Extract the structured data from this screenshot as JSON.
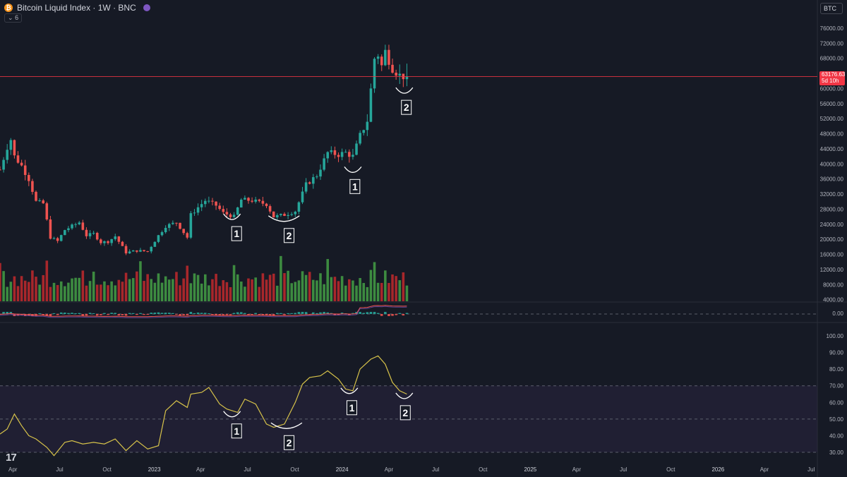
{
  "header": {
    "title": "Bitcoin Liquid Index · 1W · BNC",
    "btc_logo_text": "₿",
    "collapse_label": "6",
    "symbol": "BTC"
  },
  "price_badge": {
    "price": "63176.63",
    "countdown": "5d 10h"
  },
  "colors": {
    "background": "#161a25",
    "up": "#26a69a",
    "down": "#ef5350",
    "volume_up": "#3d8b40",
    "volume_down": "#a8272b",
    "rsi_line": "#d6c24a",
    "rsi_band": "#2a2540",
    "annotation": "#ffffff",
    "price_line": "#f23645"
  },
  "icons": {
    "btc": "bitcoin-logo-icon",
    "indicator": "purple-dot-icon",
    "collapse": "chevron-down-icon",
    "brand": "tradingview-logo-icon"
  },
  "brand_logo_text": "17",
  "chart_data": [
    {
      "type": "candlestick",
      "title": "Bitcoin Liquid Index · 1W · BNC",
      "ylim": [
        0,
        78000
      ],
      "y_ticks": [
        4000,
        8000,
        12000,
        16000,
        20000,
        24000,
        28000,
        32000,
        36000,
        40000,
        44000,
        48000,
        52000,
        56000,
        60000,
        64000,
        68000,
        72000,
        76000
      ],
      "y_tick_labels": [
        "4000.00",
        "8000.00",
        "12000.00",
        "16000.00",
        "20000.00",
        "24000.00",
        "28000.00",
        "32000.00",
        "36000.00",
        "40000.00",
        "44000.00",
        "48000.00",
        "52000.00",
        "56000.00",
        "60000.00",
        "64000.00",
        "68000.00",
        "72000.00",
        "76000.00"
      ],
      "x_labels": [
        "Apr",
        "Jul",
        "Oct",
        "2023",
        "Apr",
        "Jul",
        "Oct",
        "2024",
        "Apr",
        "Jul",
        "Oct",
        "2025",
        "Apr",
        "Jul",
        "Oct",
        "2026",
        "Apr",
        "Jul"
      ],
      "x_start": "2022-03-07",
      "x_end": "2026-07-13",
      "last_price": 63176.63,
      "close_path": [
        [
          "2022-03-07",
          38500
        ],
        [
          "2022-03-21",
          44500
        ],
        [
          "2022-03-28",
          46500
        ],
        [
          "2022-04-04",
          42000
        ],
        [
          "2022-04-18",
          39500
        ],
        [
          "2022-05-02",
          36000
        ],
        [
          "2022-05-16",
          30000
        ],
        [
          "2022-05-30",
          29500
        ],
        [
          "2022-06-13",
          20500
        ],
        [
          "2022-06-27",
          19500
        ],
        [
          "2022-07-11",
          22500
        ],
        [
          "2022-07-25",
          23500
        ],
        [
          "2022-08-08",
          24500
        ],
        [
          "2022-08-22",
          21000
        ],
        [
          "2022-09-05",
          21500
        ],
        [
          "2022-09-19",
          19200
        ],
        [
          "2022-10-03",
          19400
        ],
        [
          "2022-10-17",
          20800
        ],
        [
          "2022-11-07",
          16500
        ],
        [
          "2022-11-28",
          17000
        ],
        [
          "2022-12-19",
          16800
        ],
        [
          "2023-01-09",
          21000
        ],
        [
          "2023-01-23",
          23500
        ],
        [
          "2023-02-13",
          24500
        ],
        [
          "2023-03-06",
          20500
        ],
        [
          "2023-03-13",
          26500
        ],
        [
          "2023-03-27",
          28500
        ],
        [
          "2023-04-10",
          30300
        ],
        [
          "2023-05-01",
          29000
        ],
        [
          "2023-05-15",
          27000
        ],
        [
          "2023-06-05",
          26000
        ],
        [
          "2023-06-19",
          30500
        ],
        [
          "2023-07-10",
          30300
        ],
        [
          "2023-08-07",
          29300
        ],
        [
          "2023-08-21",
          26000
        ],
        [
          "2023-09-11",
          26500
        ],
        [
          "2023-10-02",
          27500
        ],
        [
          "2023-10-23",
          34500
        ],
        [
          "2023-11-13",
          37000
        ],
        [
          "2023-12-04",
          43000
        ],
        [
          "2023-12-25",
          42500
        ],
        [
          "2024-01-08",
          43000
        ],
        [
          "2024-01-22",
          42000
        ],
        [
          "2024-02-05",
          47500
        ],
        [
          "2024-02-19",
          51500
        ],
        [
          "2024-03-04",
          68000
        ],
        [
          "2024-03-11",
          69000
        ],
        [
          "2024-03-18",
          66000
        ],
        [
          "2024-03-25",
          69800
        ],
        [
          "2024-04-08",
          65500
        ],
        [
          "2024-04-22",
          63500
        ],
        [
          "2024-05-06",
          63176.63
        ]
      ]
    },
    {
      "type": "bar",
      "title": "Volume",
      "values_shown_as_bar_height": true,
      "note": ""
    },
    {
      "type": "line",
      "title": "RSI",
      "ylim": [
        25,
        100
      ],
      "y_ticks": [
        30,
        40,
        50,
        60,
        70,
        80,
        90,
        100
      ],
      "y_tick_labels": [
        "30.00",
        "40.00",
        "50.00",
        "60.00",
        "70.00",
        "80.00",
        "90.00",
        "100.00"
      ],
      "bands": [
        30,
        50,
        70
      ],
      "x": [
        "2022-03-07",
        "2022-03-21",
        "2022-04-04",
        "2022-04-18",
        "2022-05-02",
        "2022-05-16",
        "2022-06-06",
        "2022-06-20",
        "2022-07-11",
        "2022-07-25",
        "2022-08-15",
        "2022-09-05",
        "2022-09-26",
        "2022-10-17",
        "2022-11-07",
        "2022-11-28",
        "2022-12-19",
        "2023-01-09",
        "2023-01-23",
        "2023-02-13",
        "2023-03-06",
        "2023-03-13",
        "2023-04-03",
        "2023-04-17",
        "2023-05-08",
        "2023-05-22",
        "2023-06-12",
        "2023-06-26",
        "2023-07-17",
        "2023-08-07",
        "2023-08-21",
        "2023-09-11",
        "2023-10-02",
        "2023-10-16",
        "2023-10-30",
        "2023-11-20",
        "2023-12-04",
        "2023-12-25",
        "2024-01-08",
        "2024-01-22",
        "2024-02-05",
        "2024-02-26",
        "2024-03-11",
        "2024-03-25",
        "2024-04-08",
        "2024-04-22",
        "2024-05-06"
      ],
      "values": [
        41,
        44,
        53,
        46,
        40,
        38,
        33,
        28,
        36,
        37,
        35,
        36,
        35,
        38,
        31,
        37,
        32,
        34,
        55,
        61,
        57,
        65,
        66,
        69,
        59,
        56,
        54,
        62,
        59,
        47,
        45,
        47,
        60,
        71,
        75,
        76,
        79,
        74,
        68,
        67,
        80,
        86,
        88,
        83,
        72,
        67,
        65
      ]
    }
  ],
  "annotations": [
    {
      "label": "1",
      "panel": "price"
    },
    {
      "label": "2",
      "panel": "price"
    },
    {
      "label": "1",
      "panel": "price"
    },
    {
      "label": "2",
      "panel": "price"
    },
    {
      "label": "1",
      "panel": "rsi"
    },
    {
      "label": "2",
      "panel": "rsi"
    },
    {
      "label": "1",
      "panel": "rsi"
    },
    {
      "label": "2",
      "panel": "rsi"
    }
  ],
  "macd_zero_label": "0.00"
}
